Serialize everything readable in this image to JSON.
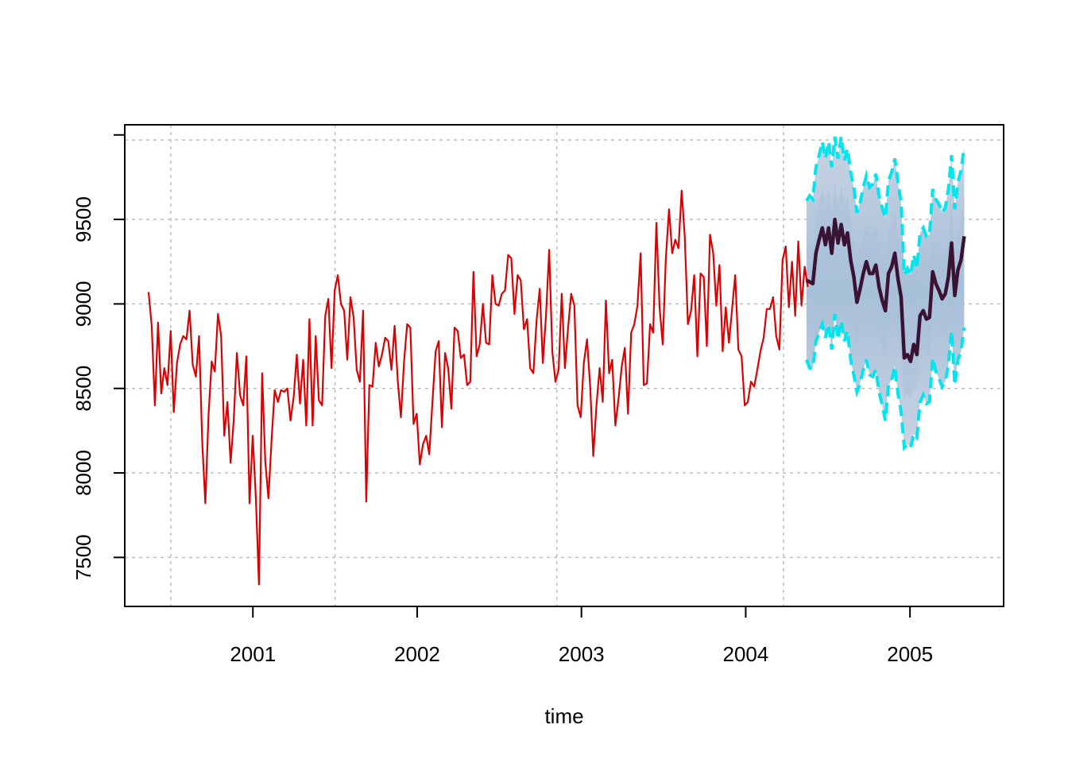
{
  "chart_data": {
    "type": "line",
    "title": "",
    "xlabel": "time",
    "ylabel": "",
    "xlim": [
      2000.22,
      2005.57
    ],
    "ylim": [
      7210,
      10060
    ],
    "x_ticks": [
      2001,
      2002,
      2003,
      2004,
      2005
    ],
    "x_tick_labels": [
      "2001",
      "2002",
      "2003",
      "2004",
      "2005"
    ],
    "y_ticks": [
      7500,
      8000,
      8500,
      9000,
      9500,
      10000
    ],
    "y_tick_labels": [
      "7500",
      "8000",
      "8500",
      "9000",
      "9500",
      ""
    ],
    "grid": true,
    "grid_x": [
      2000.5,
      2001.5,
      2002.85,
      2004.23
    ],
    "grid_y": [
      7500,
      8000,
      8500,
      9000,
      9500,
      9970
    ],
    "colors": {
      "observed": "#DD0000",
      "forecast": "#3A1233",
      "interval_bounds": "#00E5EE",
      "fan_outer": "#C2CEDF",
      "fan_inner": "#A9C1D9",
      "grid": "#BEBEBE"
    },
    "observed": {
      "x_start": 2000.365,
      "x_step": 0.0192,
      "values": [
        9070,
        8870,
        8400,
        8890,
        8470,
        8620,
        8520,
        8840,
        8360,
        8650,
        8760,
        8810,
        8790,
        8960,
        8640,
        8570,
        8810,
        8180,
        7820,
        8340,
        8660,
        8600,
        8940,
        8810,
        8220,
        8420,
        8060,
        8310,
        8710,
        8460,
        8400,
        8690,
        7820,
        8220,
        7860,
        7340,
        8590,
        8070,
        7850,
        8200,
        8490,
        8420,
        8490,
        8480,
        8500,
        8310,
        8450,
        8700,
        8410,
        8670,
        8280,
        8910,
        8280,
        8810,
        8430,
        8400,
        8930,
        9030,
        8620,
        9080,
        9170,
        9000,
        8960,
        8670,
        9040,
        8920,
        8610,
        8540,
        8960,
        7830,
        8520,
        8510,
        8770,
        8630,
        8700,
        8800,
        8780,
        8610,
        8870,
        8550,
        8330,
        8660,
        8880,
        8860,
        8290,
        8350,
        8050,
        8170,
        8220,
        8110,
        8420,
        8720,
        8780,
        8270,
        8710,
        8620,
        8380,
        8860,
        8840,
        8680,
        8700,
        8520,
        8540,
        9190,
        8690,
        8760,
        9000,
        8770,
        8760,
        9170,
        9000,
        8990,
        9060,
        9080,
        9290,
        9270,
        8940,
        9170,
        9140,
        8850,
        8910,
        8620,
        8590,
        8900,
        9090,
        8650,
        8930,
        9320,
        8720,
        8540,
        8610,
        9060,
        8620,
        8860,
        9060,
        8990,
        8400,
        8330,
        8650,
        8790,
        8510,
        8100,
        8400,
        8620,
        8420,
        9020,
        8590,
        8670,
        8280,
        8440,
        8630,
        8740,
        8350,
        8830,
        8880,
        8990,
        9300,
        8520,
        8530,
        8880,
        8830,
        9480,
        8980,
        8760,
        9270,
        9560,
        9300,
        9380,
        9330,
        9670,
        9400,
        8880,
        8960,
        9170,
        8690,
        9180,
        9160,
        8750,
        9410,
        9300,
        8990,
        9230,
        8720,
        8980,
        8770,
        8970,
        9170,
        8730,
        8690,
        8400,
        8420,
        8540,
        8510,
        8610,
        8720,
        8800,
        8970,
        8970,
        9040,
        8810,
        8730,
        9260,
        9340,
        8980,
        9250,
        8930,
        9370,
        8990,
        9220,
        9100
      ]
    },
    "forecast": {
      "x_start": 2004.37,
      "x_step": 0.0192,
      "mean": [
        9140,
        9130,
        9120,
        9300,
        9380,
        9450,
        9350,
        9450,
        9300,
        9500,
        9360,
        9470,
        9350,
        9420,
        9260,
        9160,
        9010,
        9090,
        9180,
        9250,
        9180,
        9180,
        9230,
        9100,
        9020,
        8960,
        9180,
        9220,
        9300,
        9150,
        9040,
        8680,
        8700,
        8660,
        8760,
        8700,
        8930,
        8960,
        8910,
        8920,
        9190,
        9120,
        9080,
        9030,
        9060,
        9160,
        9360,
        9050,
        9200,
        9260,
        9400
      ],
      "lower": [
        8670,
        8620,
        8620,
        8780,
        8830,
        8880,
        8800,
        8880,
        8730,
        8940,
        8790,
        8900,
        8780,
        8840,
        8670,
        8580,
        8480,
        8530,
        8610,
        8670,
        8580,
        8570,
        8610,
        8480,
        8400,
        8310,
        8520,
        8550,
        8630,
        8470,
        8360,
        8150,
        8170,
        8150,
        8230,
        8210,
        8420,
        8460,
        8410,
        8420,
        8680,
        8600,
        8560,
        8510,
        8540,
        8640,
        8840,
        8520,
        8670,
        8720,
        8860
      ],
      "upper": [
        9610,
        9640,
        9620,
        9810,
        9880,
        9960,
        9860,
        9960,
        9810,
        9990,
        9860,
        9990,
        9850,
        9920,
        9780,
        9690,
        9540,
        9600,
        9690,
        9760,
        9690,
        9710,
        9770,
        9640,
        9570,
        9510,
        9730,
        9780,
        9860,
        9720,
        9600,
        9170,
        9210,
        9170,
        9290,
        9210,
        9420,
        9450,
        9400,
        9410,
        9680,
        9620,
        9590,
        9540,
        9570,
        9680,
        9880,
        9560,
        9720,
        9790,
        9930
      ]
    }
  }
}
